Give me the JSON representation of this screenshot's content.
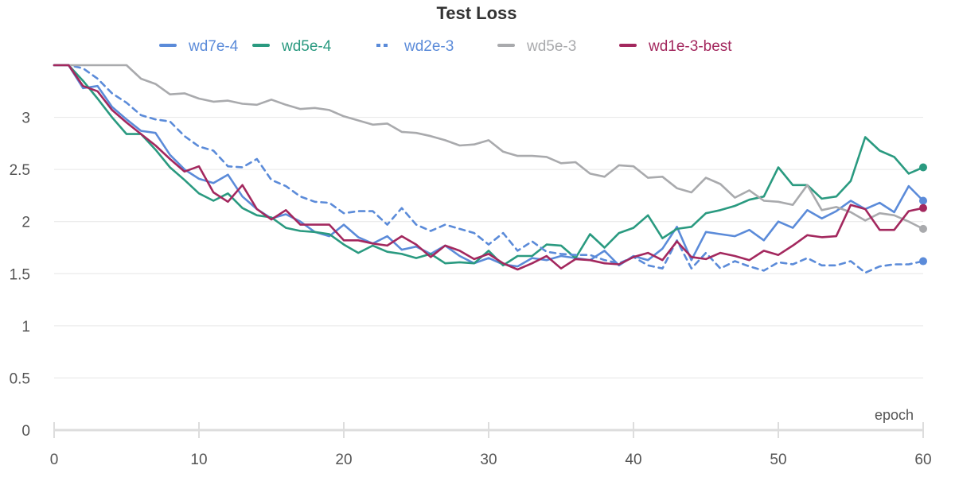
{
  "chart_data": {
    "type": "line",
    "title": "Test Loss",
    "xlabel": "epoch",
    "ylabel": "",
    "xlim": [
      0,
      60
    ],
    "ylim": [
      0,
      3.5
    ],
    "x_ticks": [
      0,
      10,
      20,
      30,
      40,
      50,
      60
    ],
    "y_ticks": [
      0,
      0.5,
      1,
      1.5,
      2,
      2.5,
      3
    ],
    "grid": "horizontal",
    "legend_position": "top",
    "series": [
      {
        "name": "wd7e-4",
        "color": "#5b8bd9",
        "dashed": false,
        "end_marker": true,
        "values": [
          3.5,
          3.5,
          3.28,
          3.3,
          3.1,
          2.98,
          2.87,
          2.85,
          2.64,
          2.5,
          2.41,
          2.37,
          2.45,
          2.24,
          2.12,
          2.03,
          2.07,
          2.0,
          1.9,
          1.86,
          1.97,
          1.85,
          1.79,
          1.86,
          1.73,
          1.76,
          1.69,
          1.77,
          1.67,
          1.6,
          1.65,
          1.59,
          1.57,
          1.65,
          1.63,
          1.67,
          1.65,
          1.63,
          1.72,
          1.58,
          1.67,
          1.63,
          1.74,
          1.95,
          1.63,
          1.9,
          1.88,
          1.86,
          1.92,
          1.82,
          2.0,
          1.94,
          2.11,
          2.03,
          2.1,
          2.2,
          2.12,
          2.18,
          2.09,
          2.34,
          2.2
        ]
      },
      {
        "name": "wd5e-4",
        "color": "#2a9a80",
        "dashed": false,
        "end_marker": true,
        "values": [
          3.5,
          3.5,
          3.35,
          3.18,
          3.0,
          2.84,
          2.84,
          2.69,
          2.52,
          2.4,
          2.27,
          2.2,
          2.27,
          2.13,
          2.06,
          2.04,
          1.94,
          1.91,
          1.9,
          1.88,
          1.78,
          1.7,
          1.77,
          1.71,
          1.69,
          1.65,
          1.69,
          1.6,
          1.61,
          1.6,
          1.72,
          1.58,
          1.67,
          1.67,
          1.78,
          1.77,
          1.65,
          1.88,
          1.75,
          1.89,
          1.94,
          2.06,
          1.84,
          1.93,
          1.95,
          2.08,
          2.11,
          2.15,
          2.21,
          2.24,
          2.52,
          2.35,
          2.35,
          2.22,
          2.24,
          2.39,
          2.81,
          2.68,
          2.62,
          2.46,
          2.52
        ]
      },
      {
        "name": "wd2e-3",
        "color": "#5b8bd9",
        "dashed": true,
        "end_marker": true,
        "values": [
          3.5,
          3.5,
          3.47,
          3.37,
          3.23,
          3.14,
          3.02,
          2.98,
          2.96,
          2.82,
          2.72,
          2.68,
          2.53,
          2.52,
          2.6,
          2.4,
          2.34,
          2.24,
          2.19,
          2.18,
          2.08,
          2.1,
          2.1,
          1.97,
          2.13,
          1.97,
          1.91,
          1.97,
          1.93,
          1.89,
          1.78,
          1.89,
          1.72,
          1.81,
          1.71,
          1.69,
          1.68,
          1.68,
          1.63,
          1.6,
          1.66,
          1.58,
          1.55,
          1.82,
          1.55,
          1.7,
          1.55,
          1.62,
          1.57,
          1.53,
          1.61,
          1.59,
          1.65,
          1.58,
          1.58,
          1.62,
          1.51,
          1.57,
          1.59,
          1.59,
          1.62
        ]
      },
      {
        "name": "wd5e-3",
        "color": "#a9aaad",
        "dashed": false,
        "end_marker": true,
        "values": [
          3.5,
          3.5,
          3.5,
          3.5,
          3.5,
          3.5,
          3.37,
          3.32,
          3.22,
          3.23,
          3.18,
          3.15,
          3.16,
          3.13,
          3.12,
          3.17,
          3.12,
          3.08,
          3.09,
          3.07,
          3.01,
          2.97,
          2.93,
          2.94,
          2.86,
          2.85,
          2.82,
          2.78,
          2.73,
          2.74,
          2.78,
          2.67,
          2.63,
          2.63,
          2.62,
          2.56,
          2.57,
          2.46,
          2.43,
          2.54,
          2.53,
          2.42,
          2.43,
          2.32,
          2.28,
          2.42,
          2.36,
          2.23,
          2.3,
          2.2,
          2.19,
          2.16,
          2.35,
          2.11,
          2.14,
          2.09,
          2.01,
          2.08,
          2.06,
          2.0,
          1.93
        ]
      },
      {
        "name": "wd1e-3-best",
        "color": "#a3285e",
        "dashed": false,
        "end_marker": true,
        "values": [
          3.5,
          3.5,
          3.3,
          3.25,
          3.07,
          2.95,
          2.84,
          2.73,
          2.6,
          2.48,
          2.53,
          2.28,
          2.19,
          2.35,
          2.12,
          2.02,
          2.11,
          1.97,
          1.97,
          1.97,
          1.82,
          1.82,
          1.79,
          1.77,
          1.86,
          1.78,
          1.66,
          1.77,
          1.72,
          1.64,
          1.69,
          1.6,
          1.54,
          1.6,
          1.67,
          1.55,
          1.64,
          1.63,
          1.6,
          1.59,
          1.66,
          1.7,
          1.63,
          1.81,
          1.66,
          1.64,
          1.7,
          1.67,
          1.63,
          1.72,
          1.68,
          1.77,
          1.87,
          1.85,
          1.86,
          2.16,
          2.12,
          1.92,
          1.92,
          2.1,
          2.13
        ]
      }
    ]
  }
}
